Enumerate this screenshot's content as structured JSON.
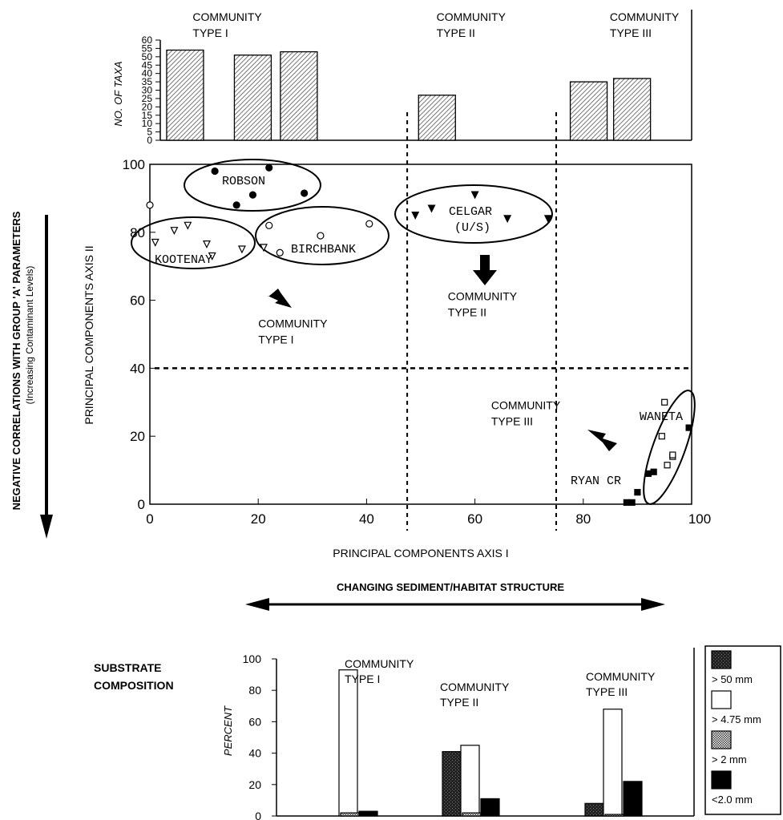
{
  "chart_data": [
    {
      "type": "bar",
      "panel": "top",
      "ylabel": "NO. OF TAXA",
      "ylim": [
        0,
        60
      ],
      "yticks": [
        0,
        5,
        10,
        15,
        20,
        25,
        30,
        35,
        40,
        45,
        50,
        55,
        60
      ],
      "group_labels": [
        {
          "line1": "COMMUNITY",
          "line2": "TYPE  I",
          "x": 15
        },
        {
          "line1": "COMMUNITY",
          "line2": "TYPE  II",
          "x": 60
        },
        {
          "line1": "COMMUNITY",
          "line2": "TYPE  III",
          "x": 92
        }
      ],
      "bars": [
        {
          "x": 6.5,
          "value": 54
        },
        {
          "x": 19,
          "value": 51
        },
        {
          "x": 27.5,
          "value": 53
        },
        {
          "x": 53,
          "value": 27
        },
        {
          "x": 81,
          "value": 35
        },
        {
          "x": 89,
          "value": 37
        }
      ]
    },
    {
      "type": "scatter",
      "panel": "middle",
      "xlabel": "PRINCIPAL  COMPONENTS  AXIS  I",
      "ylabel": "PRINCIPAL  COMPONENTS  AXIS  II",
      "xlim": [
        0,
        100
      ],
      "ylim": [
        0,
        100
      ],
      "xticks": [
        0,
        20,
        40,
        60,
        80,
        100
      ],
      "yticks": [
        0,
        20,
        40,
        60,
        80,
        100
      ],
      "grid": false,
      "divider_x": [
        47.5,
        75
      ],
      "divider_y": 40,
      "left_axis_label": "NEGATIVE CORRELATIONS WITH GROUP 'A' PARAMETERS",
      "left_axis_sublabel": "(Increasing Contaminant Levels)",
      "bottom_arrow_label": "CHANGING SEDIMENT/HABITAT STRUCTURE",
      "groups": [
        {
          "name": "ROBSON",
          "marker": "filled-circle",
          "points": [
            [
              12,
              98
            ],
            [
              22,
              99
            ],
            [
              19,
              91
            ],
            [
              16,
              88
            ],
            [
              28.5,
              91.5
            ]
          ]
        },
        {
          "name": "KOOTENAY",
          "marker": "open-triangle-down",
          "points": [
            [
              1,
              77
            ],
            [
              4.5,
              80.5
            ],
            [
              7,
              82
            ],
            [
              10.5,
              76.5
            ],
            [
              11.5,
              73
            ],
            [
              17,
              75
            ],
            [
              21,
              75.5
            ]
          ]
        },
        {
          "name": "BIRCHBANK",
          "marker": "open-circle",
          "points": [
            [
              0,
              88
            ],
            [
              22,
              82
            ],
            [
              24,
              74
            ],
            [
              31.5,
              79
            ],
            [
              40.5,
              82.5
            ]
          ]
        },
        {
          "name": "CELGAR",
          "sublabel": "(U/S)",
          "marker": "filled-triangle-down",
          "points": [
            [
              49,
              85
            ],
            [
              52,
              87
            ],
            [
              60,
              91
            ],
            [
              66,
              84
            ],
            [
              73.5,
              84
            ]
          ]
        },
        {
          "name": "WANETA",
          "marker": "open-square",
          "points": [
            [
              95,
              30
            ],
            [
              94.5,
              20
            ],
            [
              95.5,
              11.5
            ],
            [
              96.5,
              14
            ],
            [
              96.5,
              14.5
            ]
          ]
        },
        {
          "name": "RYAN  CR",
          "marker": "filled-square",
          "points": [
            [
              88,
              0.5
            ],
            [
              89,
              0.5
            ],
            [
              90,
              3.5
            ],
            [
              92,
              9
            ],
            [
              93,
              9.5
            ],
            [
              99.5,
              22.5
            ]
          ]
        }
      ],
      "annotations": [
        {
          "line1": "COMMUNITY",
          "line2": "TYPE  I",
          "x": 20,
          "y": 52
        },
        {
          "line1": "COMMUNITY",
          "line2": "TYPE  II",
          "x": 55,
          "y": 60
        },
        {
          "line1": "COMMUNITY",
          "line2": "TYPE  III",
          "x": 63,
          "y": 28
        }
      ]
    },
    {
      "type": "bar",
      "panel": "bottom",
      "title": [
        "SUBSTRATE",
        "COMPOSITION"
      ],
      "ylabel": "PERCENT",
      "ylim": [
        0,
        100
      ],
      "yticks": [
        0,
        20,
        40,
        60,
        80,
        100
      ],
      "legend_position": "right",
      "legend": [
        {
          "label": "> 50 mm",
          "pattern": "dark-stipple"
        },
        {
          "label": "> 4.75 mm",
          "pattern": "white"
        },
        {
          "label": "> 2 mm",
          "pattern": "grey-stipple"
        },
        {
          "label": "<2.0 mm",
          "pattern": "black"
        }
      ],
      "groups": [
        {
          "line1": "COMMUNITY",
          "line2": "TYPE  I",
          "values": [
            0,
            93,
            2,
            3
          ]
        },
        {
          "line1": "COMMUNITY",
          "line2": "TYPE  II",
          "values": [
            41,
            45,
            2,
            11
          ]
        },
        {
          "line1": "COMMUNITY",
          "line2": "TYPE  III",
          "values": [
            8,
            68,
            1,
            22
          ]
        }
      ]
    }
  ]
}
